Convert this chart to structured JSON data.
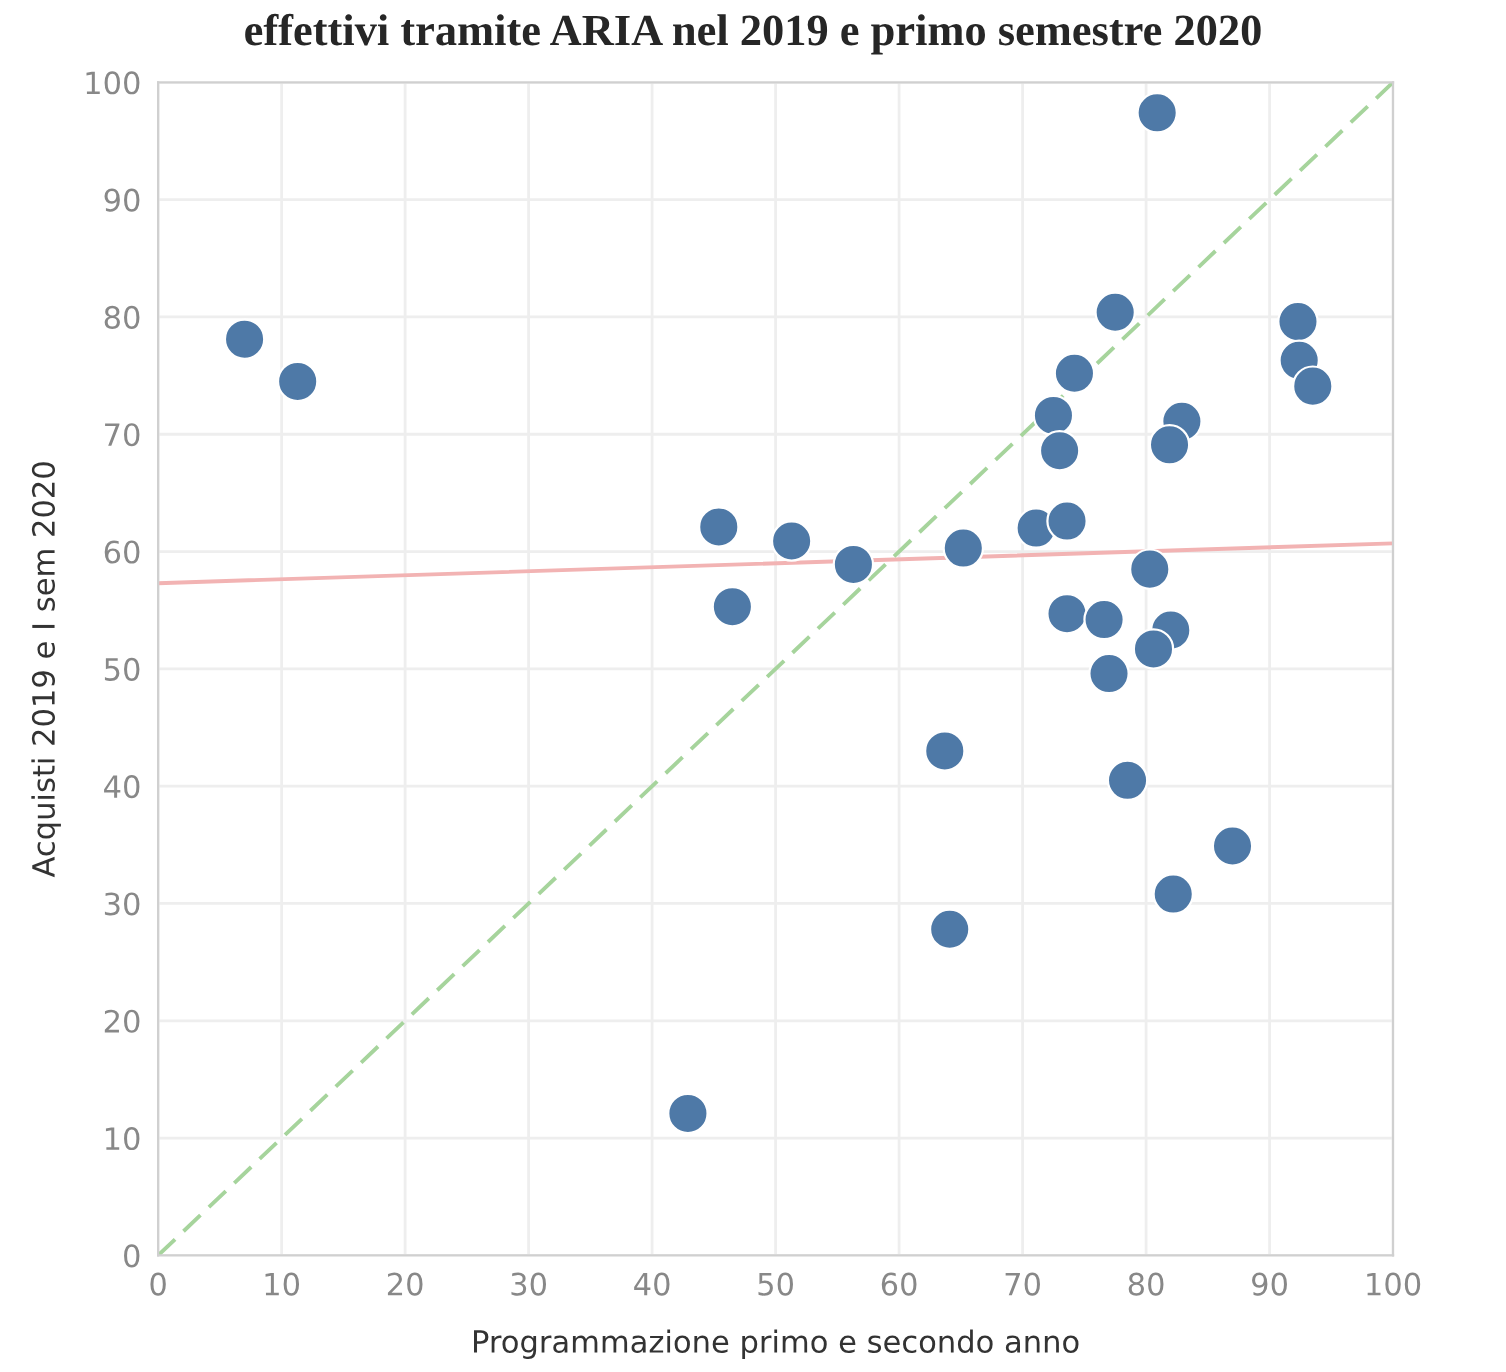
{
  "chart_data": {
    "type": "scatter",
    "title": "effettivi tramite ARIA nel 2019 e primo semestre 2020",
    "xlabel": "Programmazione primo e secondo anno",
    "ylabel": "Acquisti 2019 e I sem 2020",
    "series": [
      {
        "color": "#4e79a7",
        "marker": "circle",
        "x": [
          7.0,
          11.3,
          45.4,
          46.5,
          51.3,
          56.3,
          65.2,
          71.1,
          73.6,
          72.5,
          73.0,
          74.2,
          77.5,
          82.9,
          81.9,
          92.3,
          92.4,
          93.5,
          80.3,
          73.6,
          76.6,
          82.0,
          80.6,
          77.0,
          63.7,
          78.5,
          87.0,
          82.2,
          64.1,
          42.9,
          80.9
        ],
        "values": [
          78.1,
          74.5,
          62.1,
          55.3,
          60.9,
          58.9,
          60.3,
          62.0,
          62.6,
          71.6,
          68.6,
          75.2,
          80.4,
          71.1,
          69.1,
          79.6,
          76.3,
          74.1,
          58.5,
          54.7,
          54.2,
          53.3,
          51.7,
          49.6,
          43.0,
          40.5,
          34.9,
          30.8,
          27.8,
          12.1,
          97.4
        ]
      },
      {
        "type": "line",
        "color": "#f2b3b3",
        "line_style": "solid",
        "x": [
          0,
          100
        ],
        "values": [
          57.3,
          60.7
        ]
      },
      {
        "type": "line",
        "color": "#a6d49c",
        "line_style": "dashed",
        "x": [
          0,
          100
        ],
        "values": [
          0,
          100
        ]
      }
    ],
    "xlim": [
      0,
      100
    ],
    "ylim": [
      0,
      100
    ],
    "xticks": [
      0,
      10,
      20,
      30,
      40,
      50,
      60,
      70,
      80,
      90,
      100
    ],
    "yticks": [
      0,
      10,
      20,
      30,
      40,
      50,
      60,
      70,
      80,
      90,
      100
    ],
    "grid": true,
    "legend": false
  }
}
